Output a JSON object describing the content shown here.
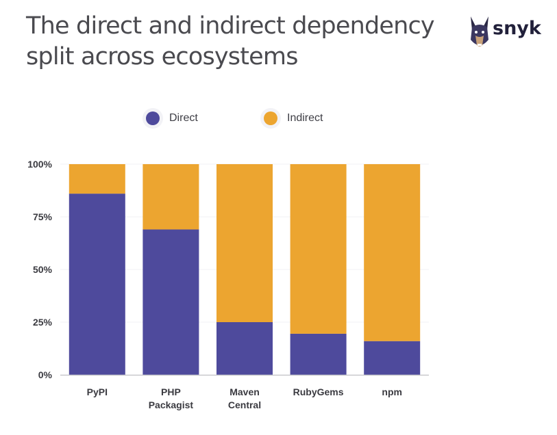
{
  "title": "The direct and indirect dependency split across ecosystems",
  "brand": {
    "name": "snyk",
    "icon": "doberman-logo-icon"
  },
  "chart_data": {
    "type": "bar",
    "stacked": true,
    "categories": [
      "PyPI",
      "PHP\nPackagist",
      "Maven\nCentral",
      "RubyGems",
      "npm"
    ],
    "series": [
      {
        "name": "Direct",
        "color": "#4e4a9c",
        "values": [
          86,
          69,
          25,
          19.5,
          16
        ]
      },
      {
        "name": "Indirect",
        "color": "#eca530",
        "values": [
          14,
          31,
          75,
          80.5,
          84
        ]
      }
    ],
    "yticks": [
      "0%",
      "25%",
      "50%",
      "75%",
      "100%"
    ],
    "ylim": [
      0,
      100
    ],
    "legend": "top-center",
    "grid": true
  }
}
